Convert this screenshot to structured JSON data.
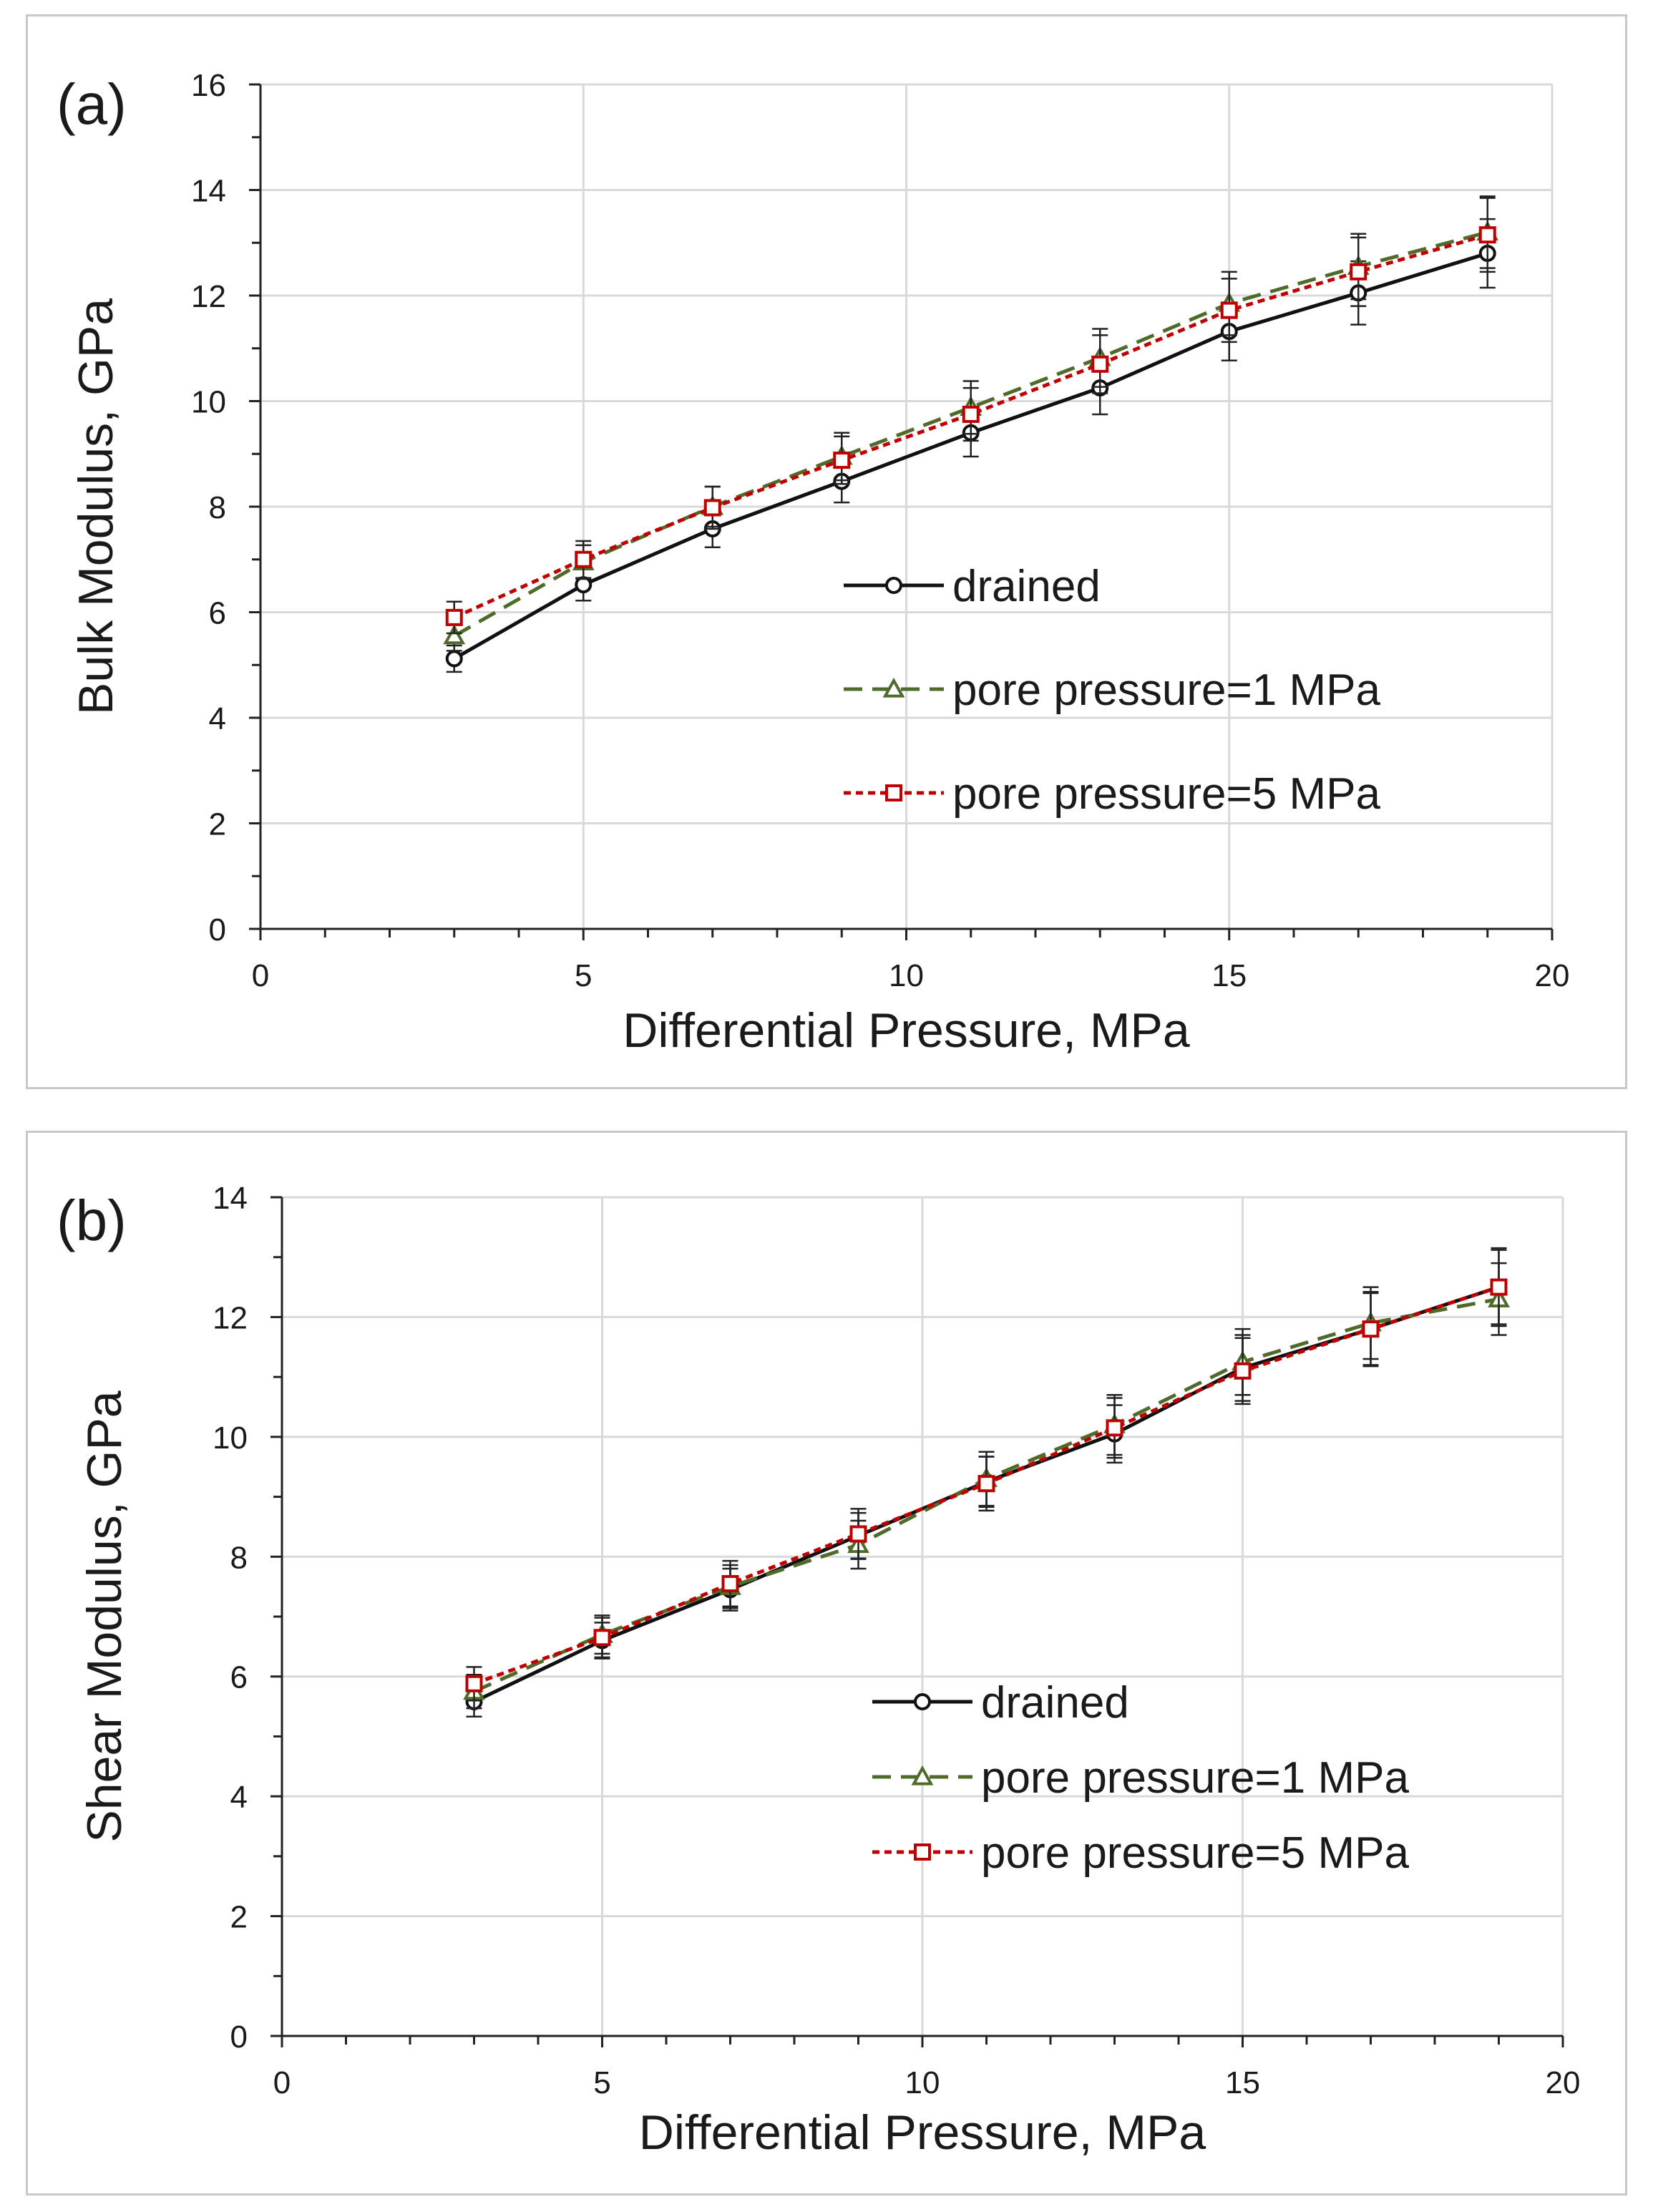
{
  "chart_data": [
    {
      "type": "line",
      "panel_label": "(a)",
      "xlabel": "Differential Pressure, MPa",
      "ylabel": "Bulk Modulus, GPa",
      "xlim": [
        0,
        20
      ],
      "ylim": [
        0,
        16
      ],
      "xticks": [
        0,
        5,
        10,
        15,
        20
      ],
      "yticks": [
        0,
        2,
        4,
        6,
        8,
        10,
        12,
        14,
        16
      ],
      "grid": true,
      "legend_position": "center-right",
      "x": [
        3,
        5,
        7,
        9,
        11,
        13,
        15,
        17,
        19
      ],
      "series": [
        {
          "name": "drained",
          "color": "#111111",
          "dash": "solid",
          "marker": "circle",
          "values": [
            5.12,
            6.52,
            7.58,
            8.48,
            9.4,
            10.25,
            11.32,
            12.05,
            12.8
          ],
          "errors": [
            0.25,
            0.3,
            0.35,
            0.4,
            0.45,
            0.5,
            0.55,
            0.6,
            0.65
          ]
        },
        {
          "name": "pore pressure=1 MPa",
          "color": "#4f6b2a",
          "dash": "dashed",
          "marker": "triangle",
          "values": [
            5.55,
            6.95,
            8.0,
            8.95,
            9.88,
            10.82,
            11.85,
            12.55,
            13.2
          ],
          "errors": [
            0.28,
            0.32,
            0.38,
            0.45,
            0.5,
            0.55,
            0.6,
            0.62,
            0.68
          ]
        },
        {
          "name": "pore pressure=5 MPa",
          "color": "#c00000",
          "dash": "dotted",
          "marker": "square",
          "values": [
            5.9,
            7.0,
            7.98,
            8.88,
            9.75,
            10.7,
            11.72,
            12.45,
            13.15
          ],
          "errors": [
            0.3,
            0.35,
            0.4,
            0.45,
            0.5,
            0.55,
            0.6,
            0.65,
            0.7
          ]
        }
      ]
    },
    {
      "type": "line",
      "panel_label": "(b)",
      "xlabel": "Differential Pressure, MPa",
      "ylabel": "Shear Modulus, GPa",
      "xlim": [
        0,
        20
      ],
      "ylim": [
        0,
        14
      ],
      "xticks": [
        0,
        5,
        10,
        15,
        20
      ],
      "yticks": [
        0,
        2,
        4,
        6,
        8,
        10,
        12,
        14
      ],
      "grid": true,
      "legend_position": "center-right",
      "x": [
        3,
        5,
        7,
        9,
        11,
        13,
        15,
        17,
        19
      ],
      "series": [
        {
          "name": "drained",
          "color": "#111111",
          "dash": "solid",
          "marker": "circle",
          "values": [
            5.58,
            6.6,
            7.45,
            8.35,
            9.25,
            10.05,
            11.15,
            11.8,
            12.5
          ],
          "errors": [
            0.25,
            0.3,
            0.35,
            0.38,
            0.42,
            0.48,
            0.55,
            0.6,
            0.65
          ]
        },
        {
          "name": "pore pressure=1 MPa",
          "color": "#4f6b2a",
          "dash": "dashed",
          "marker": "triangle",
          "values": [
            5.75,
            6.7,
            7.5,
            8.2,
            9.3,
            10.2,
            11.25,
            11.9,
            12.3
          ],
          "errors": [
            0.28,
            0.32,
            0.36,
            0.4,
            0.45,
            0.5,
            0.55,
            0.6,
            0.6
          ]
        },
        {
          "name": "pore pressure=5 MPa",
          "color": "#c00000",
          "dash": "dotted",
          "marker": "square",
          "values": [
            5.88,
            6.65,
            7.55,
            8.38,
            9.22,
            10.15,
            11.1,
            11.8,
            12.5
          ],
          "errors": [
            0.28,
            0.33,
            0.38,
            0.42,
            0.45,
            0.5,
            0.55,
            0.62,
            0.62
          ]
        }
      ]
    }
  ]
}
